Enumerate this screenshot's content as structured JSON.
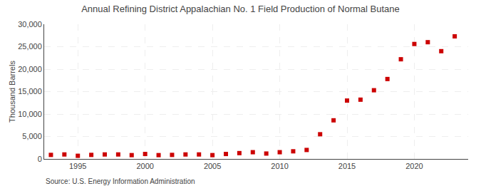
{
  "chart_data": {
    "type": "scatter",
    "title": "Annual Refining District Appalachian No. 1 Field Production of Normal Butane",
    "ylabel": "Thousand Barrels",
    "source": "Source: U.S. Energy Information Administration",
    "x": [
      1993,
      1994,
      1995,
      1996,
      1997,
      1998,
      1999,
      2000,
      2001,
      2002,
      2003,
      2004,
      2005,
      2006,
      2007,
      2008,
      2009,
      2010,
      2011,
      2012,
      2013,
      2014,
      2015,
      2016,
      2017,
      2018,
      2019,
      2020,
      2021,
      2022,
      2023
    ],
    "values": [
      900,
      1000,
      700,
      900,
      1000,
      1000,
      850,
      1100,
      850,
      900,
      1000,
      1000,
      850,
      1100,
      1300,
      1500,
      1200,
      1500,
      1700,
      2000,
      5500,
      8600,
      13000,
      13200,
      15300,
      17800,
      22200,
      25600,
      26000,
      24000,
      27300
    ],
    "color": "#cc0000",
    "marker": "square",
    "xlim": [
      1992.5,
      2024
    ],
    "xticks": [
      1995,
      2000,
      2005,
      2010,
      2015,
      2020
    ],
    "ylim": [
      0,
      30000
    ],
    "yticks": [
      0,
      {
        "value": 5000,
        "label": "5,000"
      },
      {
        "value": 10000,
        "label": "10,000"
      },
      {
        "value": 15000,
        "label": "15,000"
      },
      {
        "value": 20000,
        "label": "20,000"
      },
      {
        "value": 25000,
        "label": "25,000"
      },
      {
        "value": 30000,
        "label": "30,000"
      }
    ],
    "grid": true
  }
}
